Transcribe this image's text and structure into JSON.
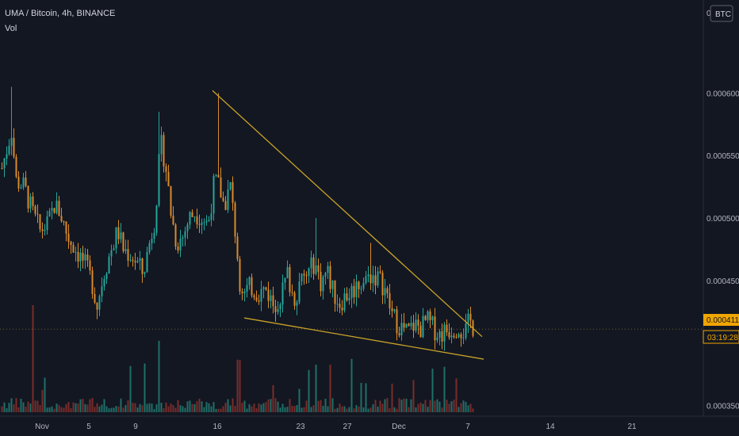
{
  "header": {
    "title": "UMA / Bitcoin, 4h, BINANCE",
    "volume_label": "Vol"
  },
  "currency_badge": "BTC",
  "top_label": "0",
  "current_price": "0.000411",
  "countdown": "03:19:28",
  "colors": {
    "background": "#131722",
    "up": "#26a69a",
    "down": "#d98a2b",
    "vol_up": "#1f6f68",
    "vol_down": "#7a2c2a",
    "trendline": "#c9a227",
    "price_badge": "#f0a500",
    "axis_text": "#b2b5be"
  },
  "chart_data": {
    "type": "candlestick",
    "title": "UMA / Bitcoin, 4h, BINANCE",
    "ylim": [
      0.000335,
      0.000665
    ],
    "price_ticks": [
      "0.000600",
      "0.000550",
      "0.000500",
      "0.000450",
      "0.000350"
    ],
    "time_ticks": [
      "Nov",
      "5",
      "9",
      "16",
      "23",
      "27",
      "Dec",
      "7",
      "14",
      "21"
    ],
    "series": [
      {
        "name": "Vol",
        "type": "volume"
      }
    ],
    "trendlines": [
      {
        "from": [
          "16",
          0.000602
        ],
        "to": [
          "after 7",
          0.000405
        ]
      },
      {
        "from": [
          "18",
          0.00042
        ],
        "to": [
          "after 7",
          0.000387
        ]
      }
    ],
    "last_price": 0.000411
  }
}
